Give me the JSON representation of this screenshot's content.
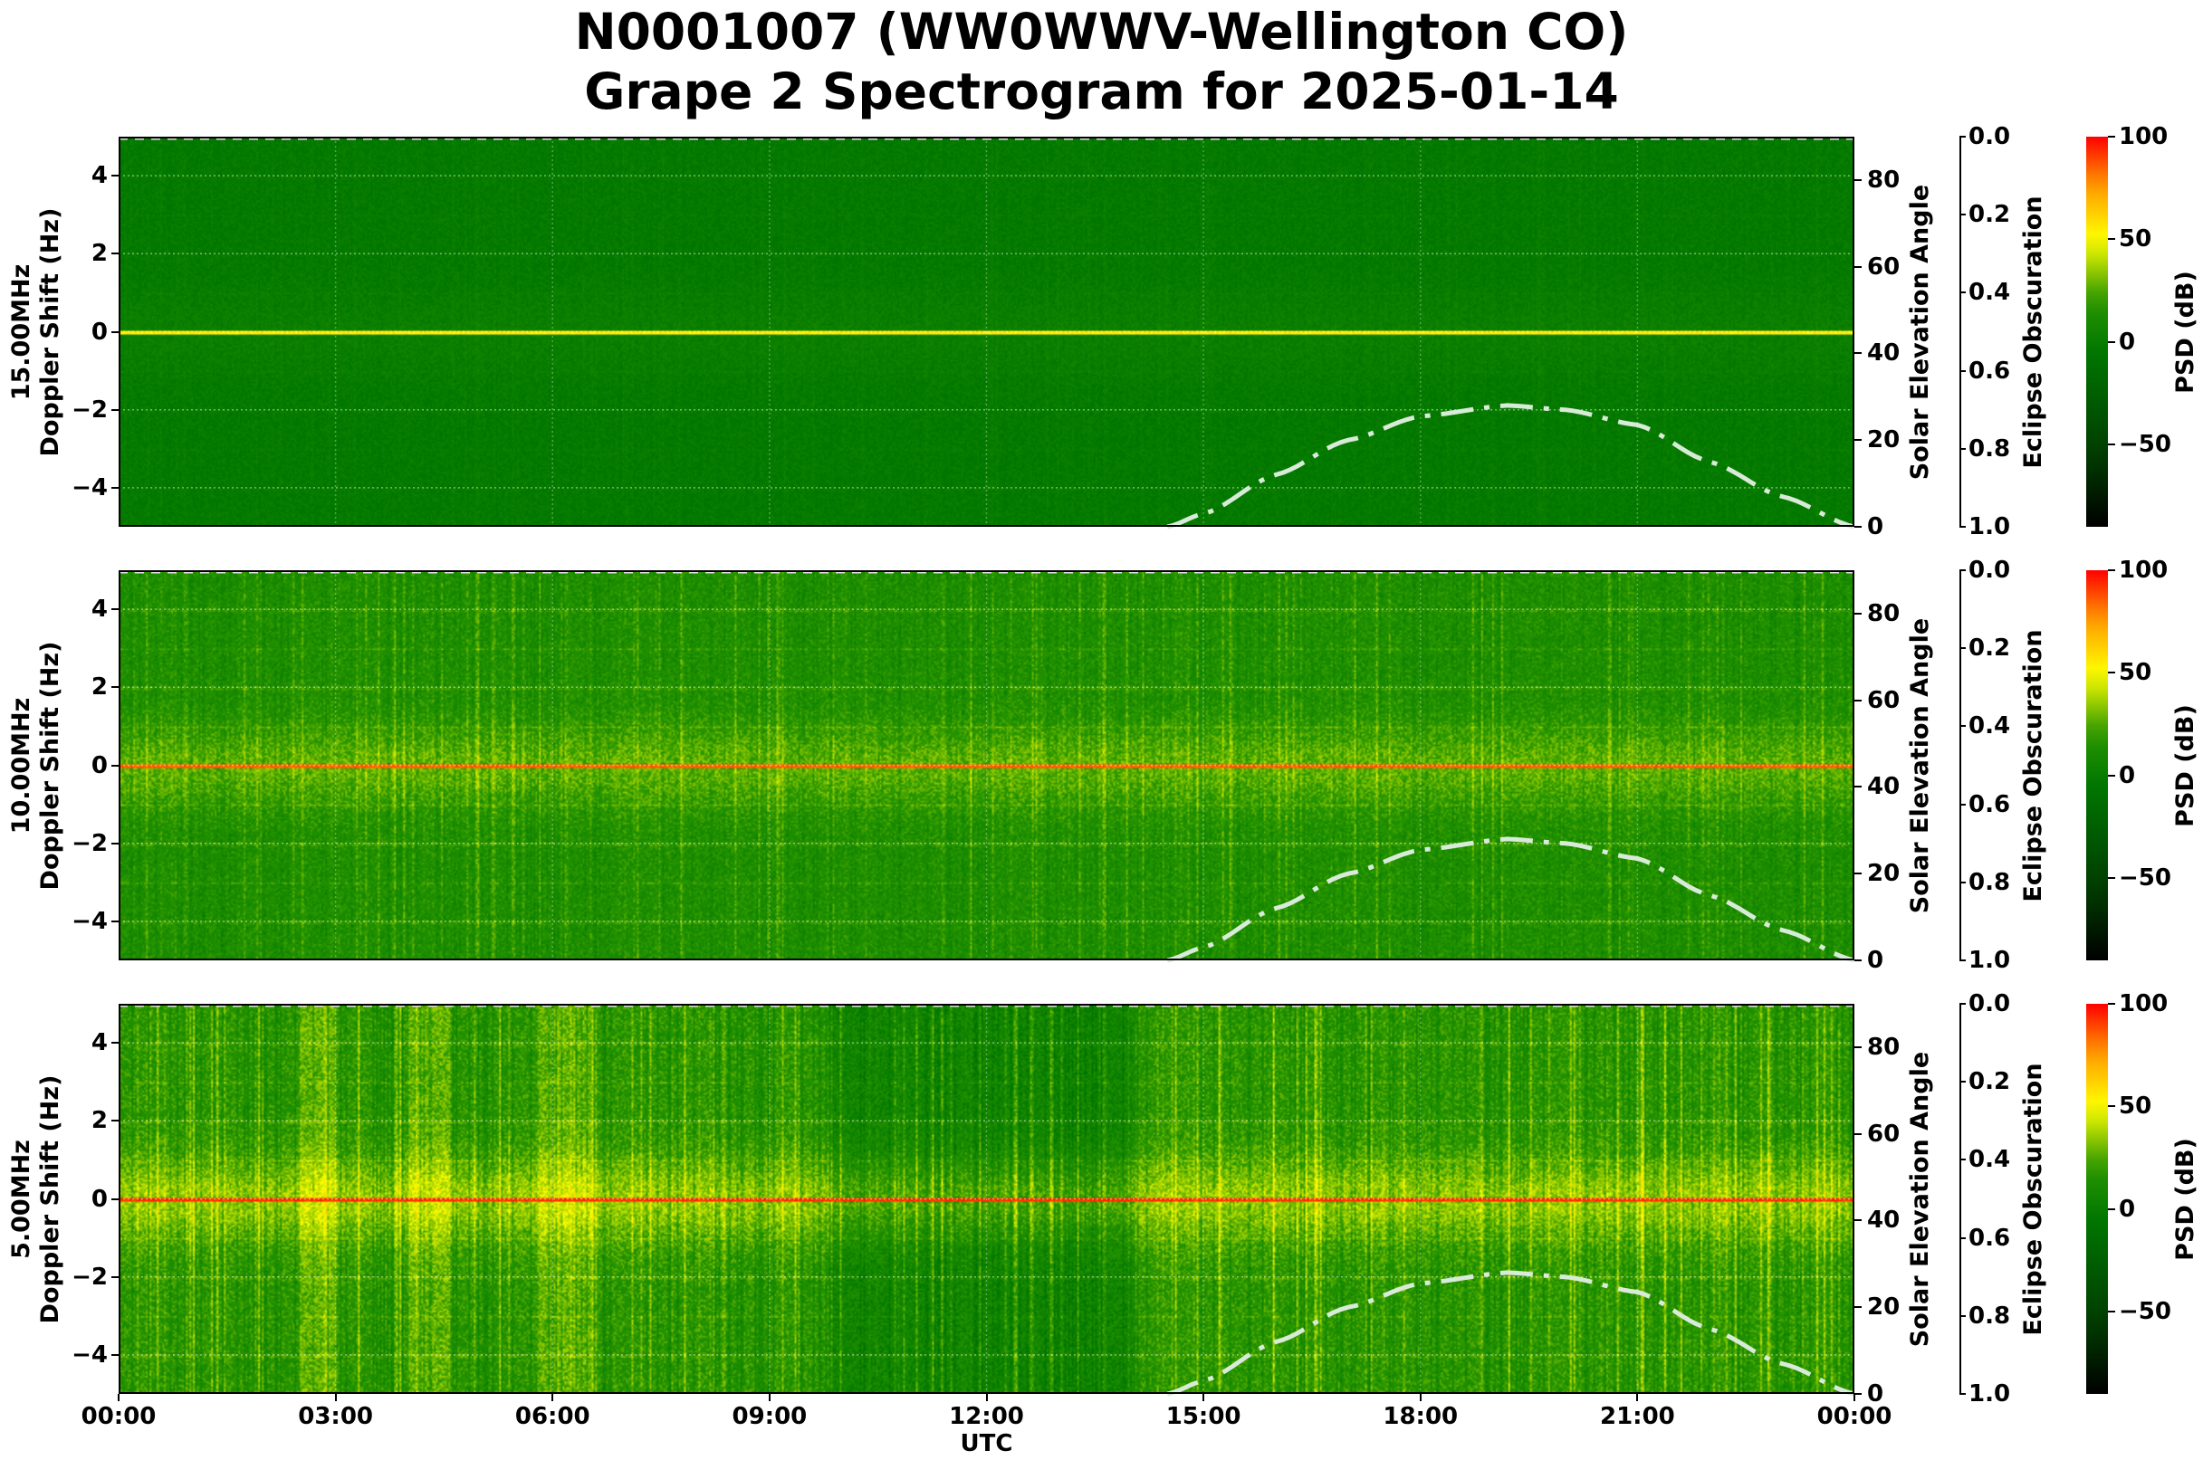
{
  "title": {
    "line1": "N0001007 (WW0WWV-Wellington CO)",
    "line2": "Grape 2 Spectrogram for 2025-01-14"
  },
  "chart_data": [
    {
      "type": "heatmap",
      "panel": "15.00MHz",
      "ylabel_lines": [
        "15.00MHz",
        "Doppler Shift (Hz)"
      ],
      "ylim": [
        -5,
        5
      ],
      "yticks": [
        "4",
        "2",
        "0",
        "−2",
        "−4"
      ],
      "carrier_psd_db_at_0hz": 55,
      "background_psd_db": 0
    },
    {
      "type": "heatmap",
      "panel": "10.00MHz",
      "ylabel_lines": [
        "10.00MHz",
        "Doppler Shift (Hz)"
      ],
      "ylim": [
        -5,
        5
      ],
      "yticks": [
        "4",
        "2",
        "0",
        "−2",
        "−4"
      ],
      "carrier_psd_db_at_0hz": 85,
      "background_psd_db": 15
    },
    {
      "type": "heatmap",
      "panel": "5.00MHz",
      "ylabel_lines": [
        "5.00MHz",
        "Doppler Shift (Hz)"
      ],
      "ylim": [
        -5,
        5
      ],
      "yticks": [
        "4",
        "2",
        "0",
        "−2",
        "−4"
      ],
      "carrier_psd_db_at_0hz": 90,
      "background_psd_db": 20
    }
  ],
  "shared_axes": {
    "xlabel": "UTC",
    "xticks": [
      "00:00",
      "03:00",
      "06:00",
      "09:00",
      "12:00",
      "15:00",
      "18:00",
      "21:00",
      "00:00"
    ],
    "xlim_hours": [
      0,
      24
    ],
    "grid": true,
    "solar_elevation": {
      "label": "Solar Elevation Angle",
      "ylim": [
        0,
        90
      ],
      "ticks": [
        "0",
        "20",
        "40",
        "60",
        "80"
      ],
      "curve_color": "#d8ead8",
      "curve_style": "dash-dot",
      "hours": [
        14.5,
        15,
        16,
        17,
        18,
        19.2,
        20,
        21,
        22,
        23,
        24
      ],
      "degrees": [
        0,
        3,
        12,
        20,
        25.5,
        28,
        27,
        23.5,
        15,
        7,
        0
      ]
    },
    "eclipse_obscuration": {
      "label": "Eclipse Obscuration",
      "ylim": [
        1.0,
        0.0
      ],
      "ticks": [
        "0.0",
        "0.2",
        "0.4",
        "0.6",
        "0.8",
        "1.0"
      ]
    },
    "colorbar": {
      "label": "PSD (dB)",
      "range": [
        -90,
        100
      ],
      "ticks": [
        "100",
        "50",
        "0",
        "−50"
      ],
      "tick_values": [
        100,
        50,
        0,
        -50
      ],
      "colormap_stops": [
        "#000000",
        "#004d00",
        "#007a00",
        "#ffff00",
        "#ff0000"
      ]
    }
  }
}
